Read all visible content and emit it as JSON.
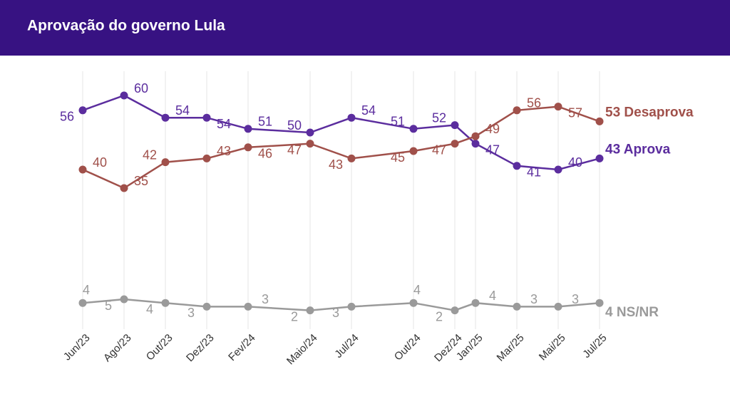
{
  "chart_data": {
    "type": "line",
    "title": "Aprovação do governo Lula",
    "x": [
      {
        "value": "2023-06",
        "label": "Jun/23"
      },
      {
        "value": "2023-08",
        "label": "Ago/23"
      },
      {
        "value": "2023-10",
        "label": "Out/23"
      },
      {
        "value": "2023-12",
        "label": "Dez/23"
      },
      {
        "value": "2024-02",
        "label": "Fev/24"
      },
      {
        "value": "2024-05",
        "label": "Maio/24"
      },
      {
        "value": "2024-07",
        "label": "Jul/24"
      },
      {
        "value": "2024-10",
        "label": "Out/24"
      },
      {
        "value": "2024-12",
        "label": "Dez/24"
      },
      {
        "value": "2025-01",
        "label": "Jan/25"
      },
      {
        "value": "2025-03",
        "label": "Mar/25"
      },
      {
        "value": "2025-05",
        "label": "Mai/25"
      },
      {
        "value": "2025-07",
        "label": "Jul/25"
      }
    ],
    "series": [
      {
        "name": "Aprova",
        "color": "#5b2d9e",
        "values": [
          56,
          60,
          54,
          54,
          51,
          50,
          54,
          51,
          52,
          47,
          41,
          40,
          43
        ]
      },
      {
        "name": "Desaprova",
        "color": "#a0504a",
        "values": [
          40,
          35,
          42,
          43,
          46,
          47,
          43,
          45,
          47,
          49,
          56,
          57,
          53
        ]
      },
      {
        "name": "NS/NR",
        "color": "#9a9a9a",
        "values": [
          4,
          5,
          4,
          3,
          3,
          2,
          3,
          4,
          2,
          4,
          3,
          3,
          4
        ]
      }
    ],
    "ylim": [
      0,
      65
    ],
    "grid": true
  }
}
